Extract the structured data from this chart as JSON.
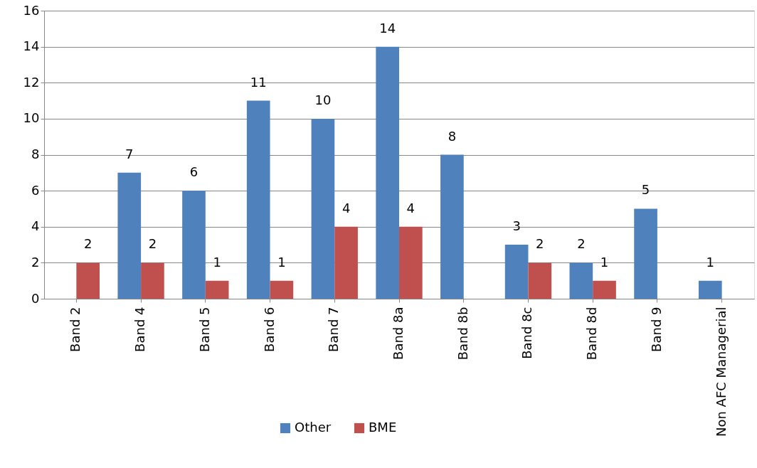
{
  "chart_data": {
    "type": "bar",
    "categories": [
      "Band 2",
      "Band 4",
      "Band 5",
      "Band 6",
      "Band 7",
      "Band 8a",
      "Band 8b",
      "Band 8c",
      "Band 8d",
      "Band 9",
      "Non AFC Managerial"
    ],
    "series": [
      {
        "name": "Other",
        "color": "#4f81bd",
        "values": [
          null,
          7,
          6,
          11,
          10,
          14,
          8,
          3,
          2,
          5,
          1
        ]
      },
      {
        "name": "BME",
        "color": "#c0504d",
        "values": [
          2,
          2,
          1,
          1,
          4,
          4,
          null,
          2,
          1,
          null,
          null
        ]
      }
    ],
    "ylim": [
      0,
      16
    ],
    "yticks": [
      0,
      2,
      4,
      6,
      8,
      10,
      12,
      14,
      16
    ],
    "grid": "y",
    "legend": "bottom",
    "data_labels": true
  }
}
